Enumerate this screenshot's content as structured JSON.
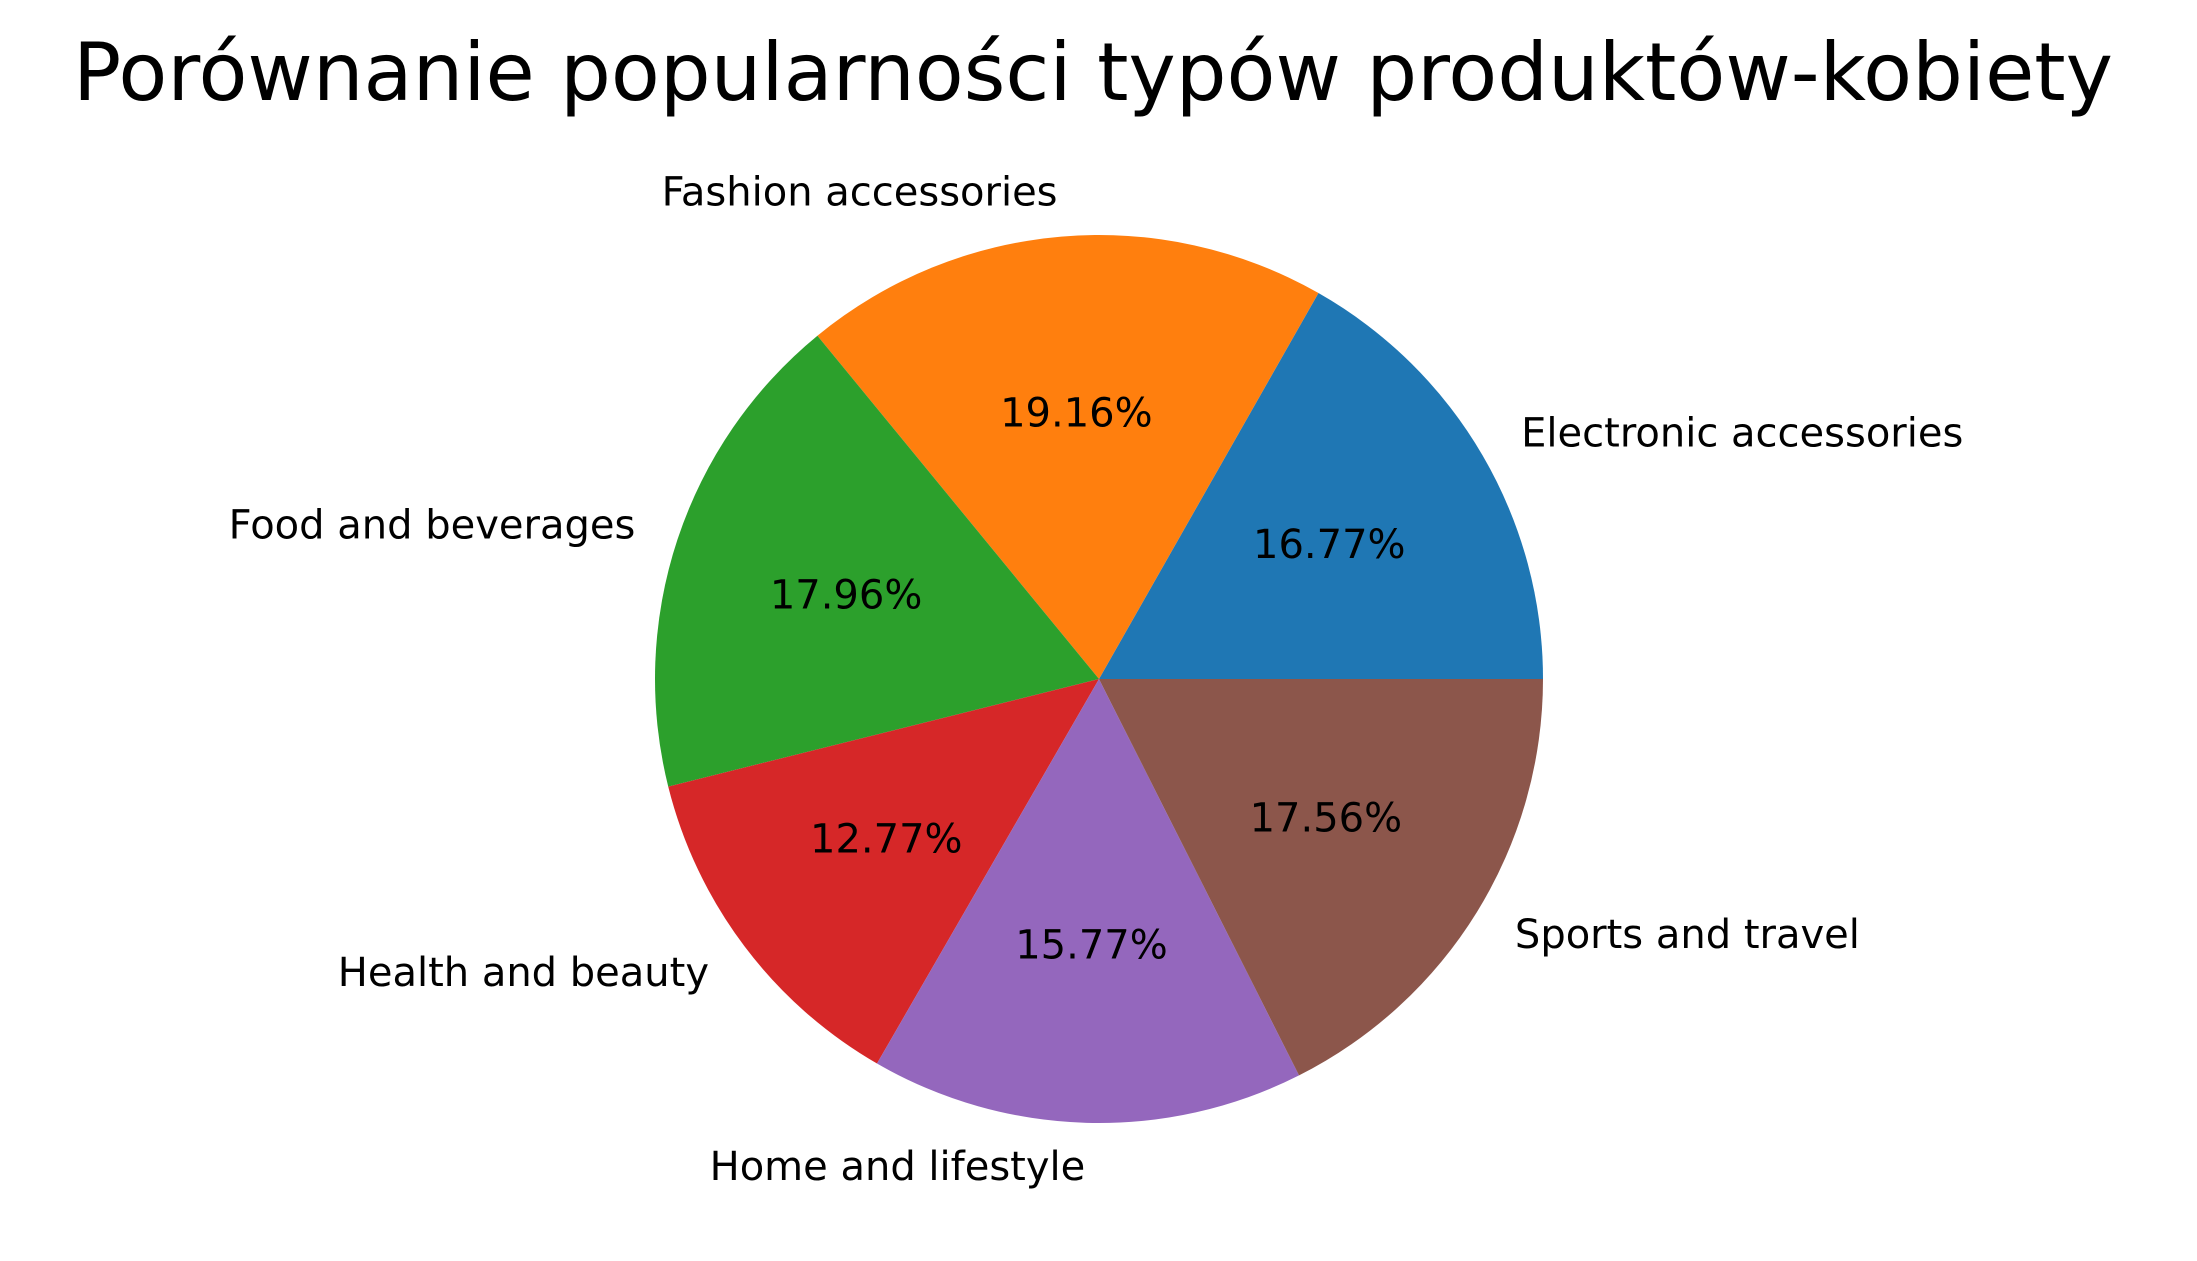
{
  "chart_data": {
    "type": "pie",
    "title": "Porównanie popularności typów produktów-kobiety",
    "categories": [
      "Electronic accessories",
      "Fashion accessories",
      "Food and beverages",
      "Health and beauty",
      "Home and lifestyle",
      "Sports and travel"
    ],
    "values": [
      16.77,
      19.16,
      17.96,
      12.77,
      15.77,
      17.56
    ],
    "labels": [
      "16.77%",
      "19.16%",
      "17.96%",
      "12.77%",
      "15.77%",
      "17.56%"
    ],
    "colors": [
      "#1f77b4",
      "#ff7f0e",
      "#2ca02c",
      "#d62728",
      "#9467bd",
      "#8c564b"
    ],
    "start_angle_deg": 0,
    "direction": "counterclockwise",
    "legend": "none"
  }
}
